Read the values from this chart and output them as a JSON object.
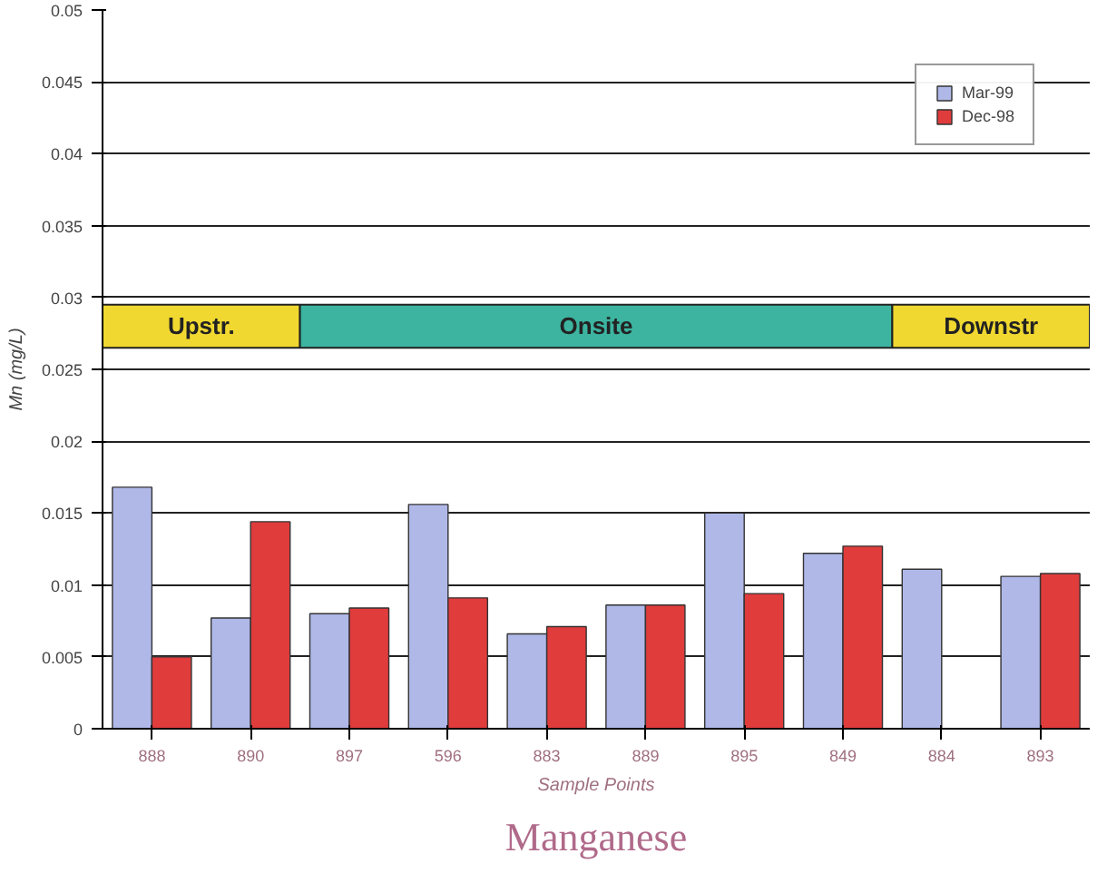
{
  "chart_data": {
    "type": "bar",
    "title": "Manganese",
    "xlabel": "Sample Points",
    "ylabel": "Mn (mg/L)",
    "categories": [
      "888",
      "890",
      "897",
      "596",
      "883",
      "889",
      "895",
      "849",
      "884",
      "893"
    ],
    "series": [
      {
        "name": "Mar-99",
        "color": "#b0b8e8",
        "values": [
          0.0168,
          0.0077,
          0.008,
          0.0156,
          0.0066,
          0.0086,
          0.015,
          0.0122,
          0.0111,
          0.0106
        ]
      },
      {
        "name": "Dec-98",
        "color": "#e03c3c",
        "values": [
          0.005,
          0.0144,
          0.0084,
          0.0091,
          0.0071,
          0.0086,
          0.0094,
          0.0127,
          null,
          0.0108
        ]
      }
    ],
    "ylim": [
      0,
      0.05
    ],
    "yticks": [
      0,
      0.005,
      0.01,
      0.015,
      0.02,
      0.025,
      0.03,
      0.035,
      0.04,
      0.045,
      0.05
    ],
    "grid": "y",
    "legend": "top right",
    "bands": [
      {
        "axis": "x",
        "from": "888",
        "to": "890",
        "label": "Upstr.",
        "color": "#f0d830"
      },
      {
        "axis": "x",
        "from": "897",
        "to": "849",
        "label": "Onsite",
        "color": "#3cb4a0"
      },
      {
        "axis": "x",
        "from": "884",
        "to": "893",
        "label": "Downstr",
        "color": "#f0d830"
      }
    ]
  }
}
